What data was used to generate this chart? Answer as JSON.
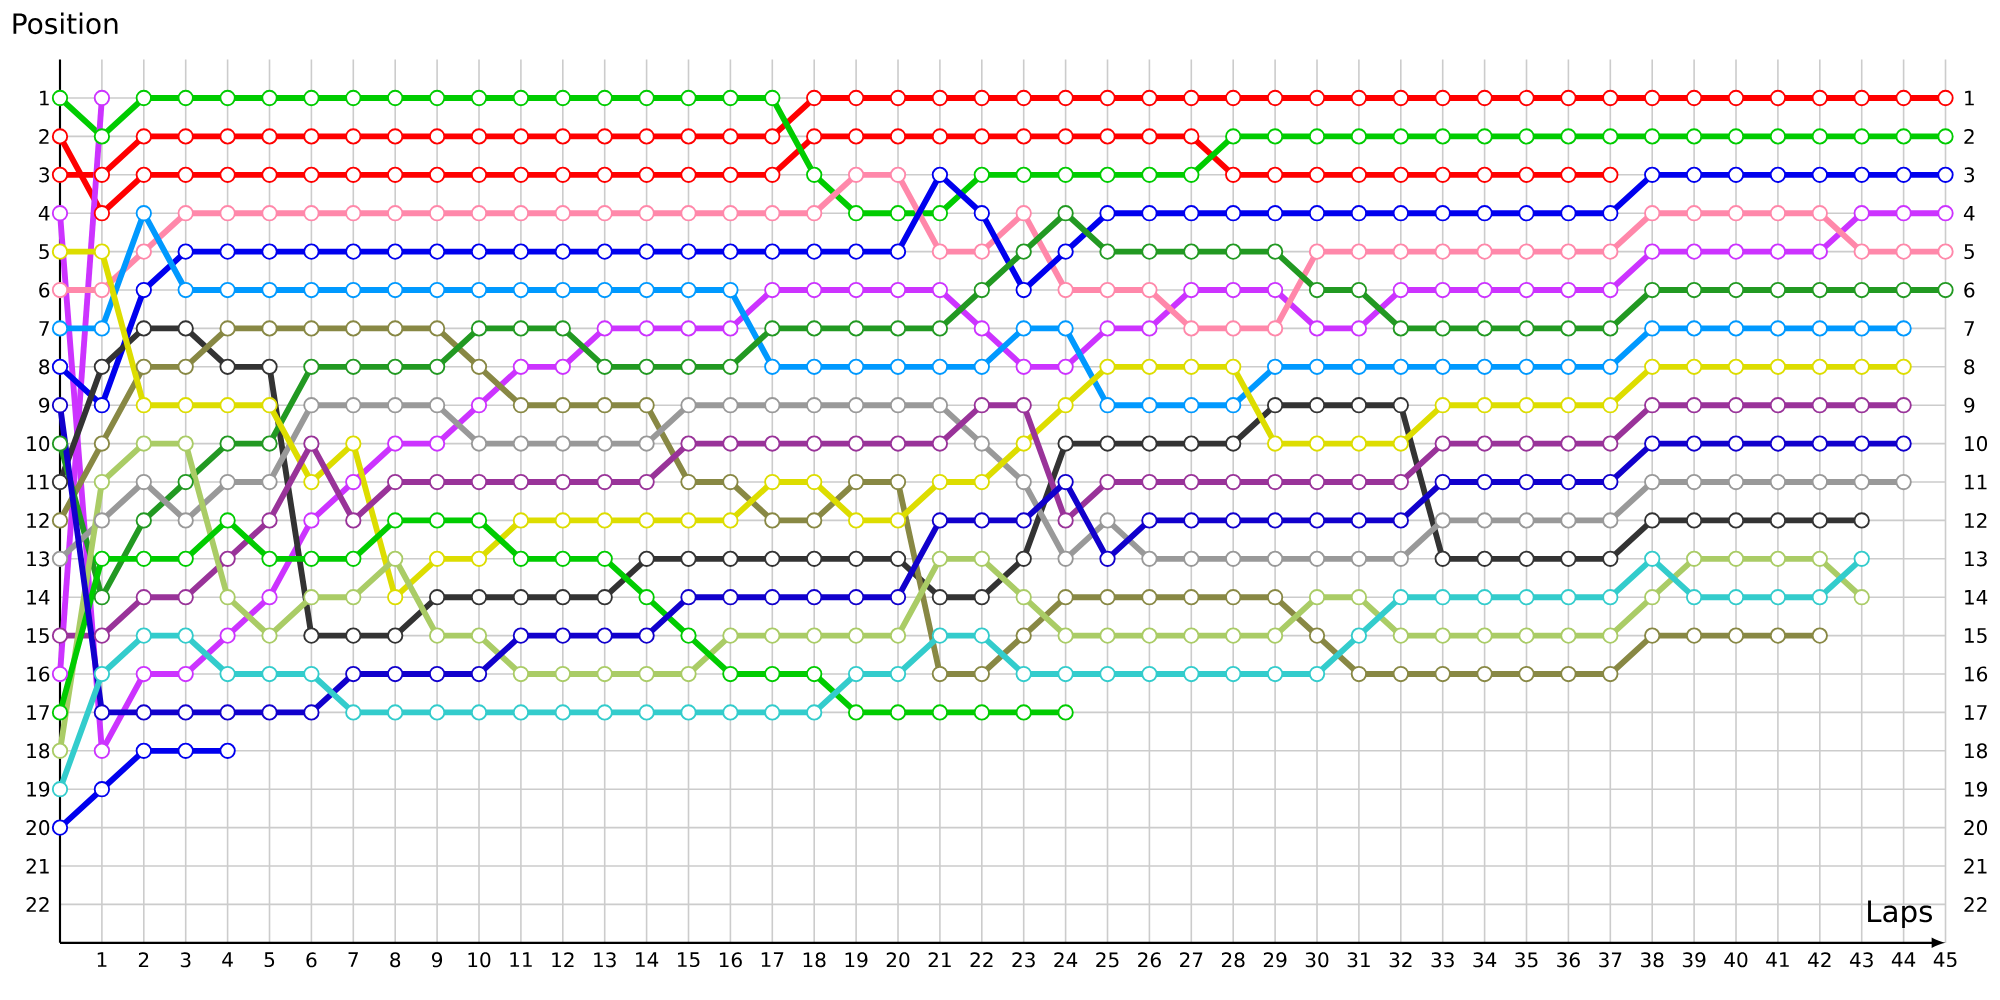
{
  "chart_data": {
    "type": "line",
    "xlabel": "Laps",
    "ylabel": "Position",
    "x": [
      0,
      1,
      2,
      3,
      4,
      5,
      6,
      7,
      8,
      9,
      10,
      11,
      12,
      13,
      14,
      15,
      16,
      17,
      18,
      19,
      20,
      21,
      22,
      23,
      24,
      25,
      26,
      27,
      28,
      29,
      30,
      31,
      32,
      33,
      34,
      35,
      36,
      37,
      38,
      39,
      40,
      41,
      42,
      43,
      44,
      45
    ],
    "xlim": [
      0,
      45
    ],
    "xticks": [
      1,
      2,
      3,
      4,
      5,
      6,
      7,
      8,
      9,
      10,
      11,
      12,
      13,
      14,
      15,
      16,
      17,
      18,
      19,
      20,
      21,
      22,
      23,
      24,
      25,
      26,
      27,
      28,
      29,
      30,
      31,
      32,
      33,
      34,
      35,
      36,
      37,
      38,
      39,
      40,
      41,
      42,
      43,
      44,
      45
    ],
    "ylim": [
      23,
      0
    ],
    "yticks": [
      1,
      2,
      3,
      4,
      5,
      6,
      7,
      8,
      9,
      10,
      11,
      12,
      13,
      14,
      15,
      16,
      17,
      18,
      19,
      20,
      21,
      22
    ],
    "y2lim": [
      23,
      0
    ],
    "y2ticks": [
      1,
      2,
      3,
      4,
      5,
      6,
      7,
      8,
      9,
      10,
      11,
      12,
      13,
      14,
      15,
      16,
      17,
      18,
      19,
      20,
      21,
      22
    ],
    "grid": true,
    "legend": false,
    "marker": "circle",
    "line_style": "solid",
    "series": [
      {
        "color": "#ff0000",
        "values": [
          3,
          3,
          2,
          2,
          2,
          2,
          2,
          2,
          2,
          2,
          2,
          2,
          2,
          2,
          2,
          2,
          2,
          2,
          1,
          1,
          1,
          1,
          1,
          1,
          1,
          1,
          1,
          1,
          1,
          1,
          1,
          1,
          1,
          1,
          1,
          1,
          1,
          1,
          1,
          1,
          1,
          1,
          1,
          1,
          1,
          1
        ]
      },
      {
        "color": "#ff0000",
        "values": [
          2,
          4,
          3,
          3,
          3,
          3,
          3,
          3,
          3,
          3,
          3,
          3,
          3,
          3,
          3,
          3,
          3,
          3,
          2,
          2,
          2,
          2,
          2,
          2,
          2,
          2,
          2,
          2,
          3,
          3,
          3,
          3,
          3,
          3,
          3,
          3,
          3,
          3,
          null,
          null,
          null,
          null,
          null,
          null,
          null,
          null
        ]
      },
      {
        "color": "#00cc00",
        "values": [
          1,
          2,
          1,
          1,
          1,
          1,
          1,
          1,
          1,
          1,
          1,
          1,
          1,
          1,
          1,
          1,
          1,
          1,
          3,
          4,
          4,
          4,
          3,
          3,
          3,
          3,
          3,
          3,
          2,
          2,
          2,
          2,
          2,
          2,
          2,
          2,
          2,
          2,
          2,
          2,
          2,
          2,
          2,
          2,
          2,
          2
        ]
      },
      {
        "color": "#cc33ff",
        "values": [
          16,
          1,
          null,
          null,
          null,
          null,
          null,
          null,
          null,
          null,
          null,
          null,
          null,
          null,
          null,
          null,
          null,
          null,
          null,
          null,
          null,
          null,
          null,
          null,
          null,
          null,
          null,
          null,
          null,
          null,
          null,
          null,
          null,
          null,
          null,
          null,
          null,
          null,
          null,
          null,
          null,
          null,
          null,
          null,
          null,
          null
        ]
      },
      {
        "color": "#cc33ff",
        "values": [
          4,
          18,
          16,
          16,
          15,
          14,
          12,
          11,
          10,
          10,
          9,
          8,
          8,
          7,
          7,
          7,
          7,
          6,
          6,
          6,
          6,
          6,
          7,
          8,
          8,
          7,
          7,
          6,
          6,
          6,
          7,
          7,
          6,
          6,
          6,
          6,
          6,
          6,
          5,
          5,
          5,
          5,
          5,
          4,
          4,
          4
        ]
      },
      {
        "color": "#ff88aa",
        "values": [
          6,
          6,
          5,
          4,
          4,
          4,
          4,
          4,
          4,
          4,
          4,
          4,
          4,
          4,
          4,
          4,
          4,
          4,
          4,
          3,
          3,
          5,
          5,
          4,
          6,
          6,
          6,
          7,
          7,
          7,
          5,
          5,
          5,
          5,
          5,
          5,
          5,
          5,
          4,
          4,
          4,
          4,
          4,
          5,
          5,
          5
        ]
      },
      {
        "color": "#0000ee",
        "values": [
          8,
          9,
          6,
          5,
          5,
          5,
          5,
          5,
          5,
          5,
          5,
          5,
          5,
          5,
          5,
          5,
          5,
          5,
          5,
          5,
          5,
          3,
          4,
          6,
          5,
          4,
          4,
          4,
          4,
          4,
          4,
          4,
          4,
          4,
          4,
          4,
          4,
          4,
          3,
          3,
          3,
          3,
          3,
          3,
          3,
          3
        ]
      },
      {
        "color": "#0099ff",
        "values": [
          7,
          7,
          4,
          6,
          6,
          6,
          6,
          6,
          6,
          6,
          6,
          6,
          6,
          6,
          6,
          6,
          6,
          8,
          8,
          8,
          8,
          8,
          8,
          7,
          7,
          9,
          9,
          9,
          9,
          8,
          8,
          8,
          8,
          8,
          8,
          8,
          8,
          8,
          7,
          7,
          7,
          7,
          7,
          7,
          7,
          null
        ]
      },
      {
        "color": "#333333",
        "values": [
          11,
          8,
          7,
          7,
          8,
          8,
          15,
          15,
          15,
          14,
          14,
          14,
          14,
          14,
          13,
          13,
          13,
          13,
          13,
          13,
          13,
          14,
          14,
          13,
          10,
          10,
          10,
          10,
          10,
          9,
          9,
          9,
          9,
          13,
          13,
          13,
          13,
          13,
          12,
          12,
          12,
          12,
          12,
          12,
          null,
          null
        ]
      },
      {
        "color": "#888844",
        "values": [
          12,
          10,
          8,
          8,
          7,
          7,
          7,
          7,
          7,
          7,
          8,
          9,
          9,
          9,
          9,
          11,
          11,
          12,
          12,
          11,
          11,
          16,
          16,
          15,
          14,
          14,
          14,
          14,
          14,
          14,
          15,
          16,
          16,
          16,
          16,
          16,
          16,
          16,
          15,
          15,
          15,
          15,
          15,
          null,
          null,
          null
        ]
      },
      {
        "color": "#229922",
        "values": [
          10,
          14,
          12,
          11,
          10,
          10,
          8,
          8,
          8,
          8,
          7,
          7,
          7,
          8,
          8,
          8,
          8,
          7,
          7,
          7,
          7,
          7,
          6,
          5,
          4,
          5,
          5,
          5,
          5,
          5,
          6,
          6,
          7,
          7,
          7,
          7,
          7,
          7,
          6,
          6,
          6,
          6,
          6,
          6,
          6,
          6
        ]
      },
      {
        "color": "#999999",
        "values": [
          13,
          12,
          11,
          12,
          11,
          11,
          9,
          9,
          9,
          9,
          10,
          10,
          10,
          10,
          10,
          9,
          9,
          9,
          9,
          9,
          9,
          9,
          10,
          11,
          13,
          12,
          13,
          13,
          13,
          13,
          13,
          13,
          13,
          12,
          12,
          12,
          12,
          12,
          11,
          11,
          11,
          11,
          11,
          11,
          11,
          null
        ]
      },
      {
        "color": "#dddd00",
        "values": [
          5,
          5,
          9,
          9,
          9,
          9,
          11,
          10,
          14,
          13,
          13,
          12,
          12,
          12,
          12,
          12,
          12,
          11,
          11,
          12,
          12,
          11,
          11,
          10,
          9,
          8,
          8,
          8,
          8,
          10,
          10,
          10,
          10,
          9,
          9,
          9,
          9,
          9,
          8,
          8,
          8,
          8,
          8,
          8,
          8,
          null
        ]
      },
      {
        "color": "#993399",
        "values": [
          15,
          15,
          14,
          14,
          13,
          12,
          10,
          12,
          11,
          11,
          11,
          11,
          11,
          11,
          11,
          10,
          10,
          10,
          10,
          10,
          10,
          10,
          9,
          9,
          12,
          11,
          11,
          11,
          11,
          11,
          11,
          11,
          11,
          10,
          10,
          10,
          10,
          10,
          9,
          9,
          9,
          9,
          9,
          9,
          9,
          null
        ]
      },
      {
        "color": "#aacc66",
        "values": [
          18,
          11,
          10,
          10,
          14,
          15,
          14,
          14,
          13,
          15,
          15,
          16,
          16,
          16,
          16,
          16,
          15,
          15,
          15,
          15,
          15,
          13,
          13,
          14,
          15,
          15,
          15,
          15,
          15,
          15,
          14,
          14,
          15,
          15,
          15,
          15,
          15,
          15,
          14,
          13,
          13,
          13,
          13,
          14,
          null,
          null
        ]
      },
      {
        "color": "#00cc00",
        "values": [
          17,
          13,
          13,
          13,
          12,
          13,
          13,
          13,
          12,
          12,
          12,
          13,
          13,
          13,
          14,
          15,
          16,
          16,
          16,
          17,
          17,
          17,
          17,
          17,
          17,
          null,
          null,
          null,
          null,
          null,
          null,
          null,
          null,
          null,
          null,
          null,
          null,
          null,
          null,
          null,
          null,
          null,
          null,
          null,
          null,
          null
        ]
      },
      {
        "color": "#1100cc",
        "values": [
          9,
          17,
          17,
          17,
          17,
          17,
          17,
          16,
          16,
          16,
          16,
          15,
          15,
          15,
          15,
          14,
          14,
          14,
          14,
          14,
          14,
          12,
          12,
          12,
          11,
          13,
          12,
          12,
          12,
          12,
          12,
          12,
          12,
          11,
          11,
          11,
          11,
          11,
          10,
          10,
          10,
          10,
          10,
          10,
          10,
          null
        ]
      },
      {
        "color": "#33cccc",
        "values": [
          19,
          16,
          15,
          15,
          16,
          16,
          16,
          17,
          17,
          17,
          17,
          17,
          17,
          17,
          17,
          17,
          17,
          17,
          17,
          16,
          16,
          15,
          15,
          16,
          16,
          16,
          16,
          16,
          16,
          16,
          16,
          15,
          14,
          14,
          14,
          14,
          14,
          14,
          13,
          14,
          14,
          14,
          14,
          13,
          null,
          null
        ]
      },
      {
        "color": "#0000ee",
        "values": [
          20,
          19,
          18,
          18,
          18,
          null,
          null,
          null,
          null,
          null,
          null,
          null,
          null,
          null,
          null,
          null,
          null,
          null,
          null,
          null,
          null,
          null,
          null,
          null,
          null,
          null,
          null,
          null,
          null,
          null,
          null,
          null,
          null,
          null,
          null,
          null,
          null,
          null,
          null,
          null,
          null,
          null,
          null,
          null,
          null,
          null
        ]
      }
    ]
  }
}
